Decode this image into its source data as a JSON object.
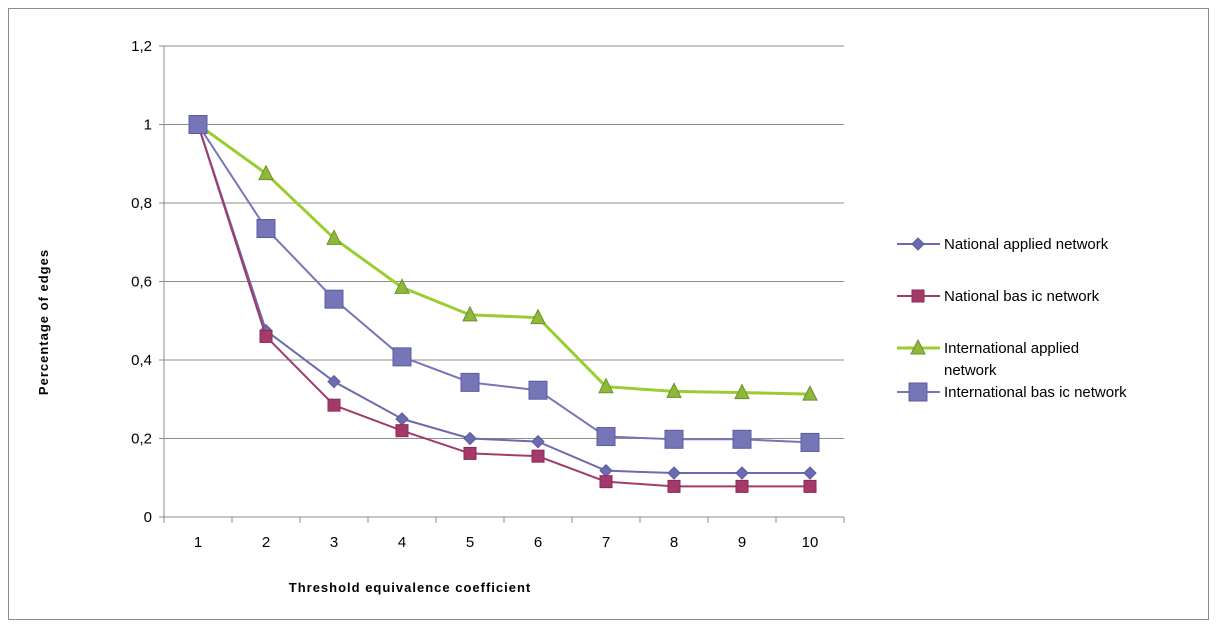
{
  "chart_data": {
    "type": "line",
    "categories": [
      "1",
      "2",
      "3",
      "4",
      "5",
      "6",
      "7",
      "8",
      "9",
      "10"
    ],
    "xlabel": "Threshold equivalence coefficient",
    "ylabel": "Percentage of edges",
    "ylim": [
      0,
      1.2
    ],
    "yticks": [
      "0",
      "0,2",
      "0,4",
      "0,6",
      "0,8",
      "1",
      "1,2"
    ],
    "grid": "horizontal",
    "legend_position": "right",
    "series": [
      {
        "name": "National applied network",
        "color": "#6b6bb0",
        "marker": "diamond",
        "values": [
          1,
          0.475,
          0.345,
          0.25,
          0.2,
          0.192,
          0.118,
          0.112,
          0.112,
          0.112
        ]
      },
      {
        "name": "National basic network",
        "color": "#a33a6a",
        "marker": "square",
        "values": [
          1,
          0.46,
          0.285,
          0.22,
          0.162,
          0.155,
          0.09,
          0.078,
          0.078,
          0.078
        ]
      },
      {
        "name": "International applied network",
        "color": "#9acd32",
        "marker": "triangle",
        "values": [
          1,
          0.875,
          0.71,
          0.585,
          0.515,
          0.508,
          0.332,
          0.32,
          0.317,
          0.313
        ]
      },
      {
        "name": "International basic network",
        "color": "#7575b8",
        "marker": "bigsquare",
        "values": [
          1,
          0.735,
          0.555,
          0.408,
          0.343,
          0.323,
          0.205,
          0.198,
          0.198,
          0.19
        ]
      }
    ]
  },
  "legend": {
    "items": [
      {
        "line1": "National applied network",
        "line2": ""
      },
      {
        "line1": "National bas ic network",
        "line2": ""
      },
      {
        "line1": "International applied",
        "line2": "network"
      },
      {
        "line1": "International bas ic network",
        "line2": ""
      }
    ]
  },
  "axis_titles": {
    "x": "Threshold equivalence coefficient",
    "y": "Percentage of edges"
  }
}
